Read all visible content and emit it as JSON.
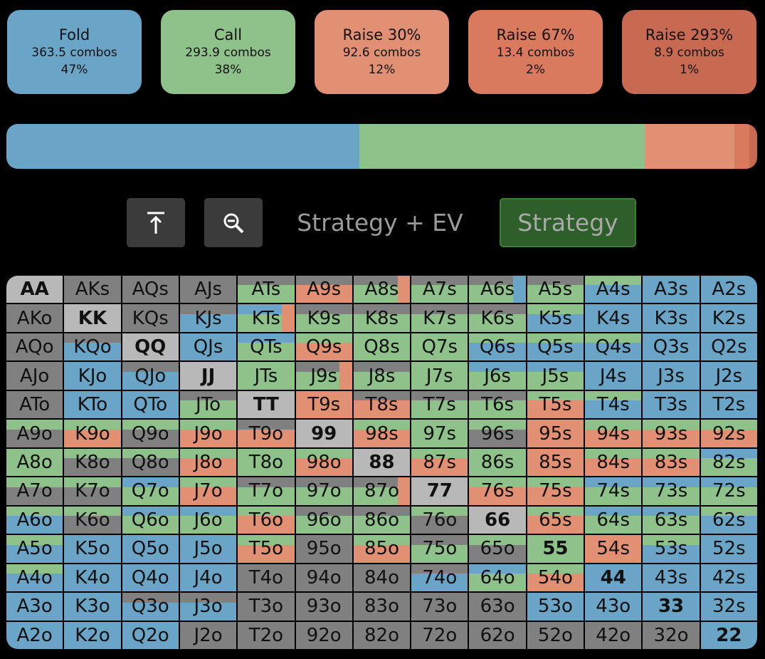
{
  "colors": {
    "fold": "#6aa4c6",
    "call": "#8fc28b",
    "raise30": "#e29074",
    "raise67": "#d97a5e",
    "raise293": "#c86a52",
    "grey": "#808080",
    "pair_light": "#b8b8b8",
    "tab_active_bg": "#2e5e2a"
  },
  "actions": [
    {
      "name": "Fold",
      "combos": "363.5 combos",
      "pct": "47%",
      "color": "#6aa4c6"
    },
    {
      "name": "Call",
      "combos": "293.9 combos",
      "pct": "38%",
      "color": "#8fc28b"
    },
    {
      "name": "Raise 30%",
      "combos": "92.6 combos",
      "pct": "12%",
      "color": "#e29074"
    },
    {
      "name": "Raise 67%",
      "combos": "13.4 combos",
      "pct": "2%",
      "color": "#d97a5e"
    },
    {
      "name": "Raise 293%",
      "combos": "8.9 combos",
      "pct": "1%",
      "color": "#c86a52"
    }
  ],
  "frequency_bar": [
    {
      "action": "Fold",
      "share": 0.47
    },
    {
      "action": "Call",
      "share": 0.38
    },
    {
      "action": "Raise 30%",
      "share": 0.12
    },
    {
      "action": "Raise 67%",
      "share": 0.02
    },
    {
      "action": "Raise 293%",
      "share": 0.01
    }
  ],
  "toolbar": {
    "upload_icon": "arrow-up-to-line-icon",
    "zoom_icon": "magnifier-minus-icon",
    "tab_strategy_ev": "Strategy + EV",
    "tab_strategy": "Strategy",
    "active_tab": "Strategy"
  },
  "hand_grid": [
    [
      "AA",
      "AKs",
      "AQs",
      "AJs",
      "ATs",
      "A9s",
      "A8s",
      "A7s",
      "A6s",
      "A5s",
      "A4s",
      "A3s",
      "A2s"
    ],
    [
      "AKo",
      "KK",
      "KQs",
      "KJs",
      "KTs",
      "K9s",
      "K8s",
      "K7s",
      "K6s",
      "K5s",
      "K4s",
      "K3s",
      "K2s"
    ],
    [
      "AQo",
      "KQo",
      "QQ",
      "QJs",
      "QTs",
      "Q9s",
      "Q8s",
      "Q7s",
      "Q6s",
      "Q5s",
      "Q4s",
      "Q3s",
      "Q2s"
    ],
    [
      "AJo",
      "KJo",
      "QJo",
      "JJ",
      "JTs",
      "J9s",
      "J8s",
      "J7s",
      "J6s",
      "J5s",
      "J4s",
      "J3s",
      "J2s"
    ],
    [
      "ATo",
      "KTo",
      "QTo",
      "JTo",
      "TT",
      "T9s",
      "T8s",
      "T7s",
      "T6s",
      "T5s",
      "T4s",
      "T3s",
      "T2s"
    ],
    [
      "A9o",
      "K9o",
      "Q9o",
      "J9o",
      "T9o",
      "99",
      "98s",
      "97s",
      "96s",
      "95s",
      "94s",
      "93s",
      "92s"
    ],
    [
      "A8o",
      "K8o",
      "Q8o",
      "J8o",
      "T8o",
      "98o",
      "88",
      "87s",
      "86s",
      "85s",
      "84s",
      "83s",
      "82s"
    ],
    [
      "A7o",
      "K7o",
      "Q7o",
      "J7o",
      "T7o",
      "97o",
      "87o",
      "77",
      "76s",
      "75s",
      "74s",
      "73s",
      "72s"
    ],
    [
      "A6o",
      "K6o",
      "Q6o",
      "J6o",
      "T6o",
      "96o",
      "86o",
      "76o",
      "66",
      "65s",
      "64s",
      "63s",
      "62s"
    ],
    [
      "A5o",
      "K5o",
      "Q5o",
      "J5o",
      "T5o",
      "95o",
      "85o",
      "75o",
      "65o",
      "55",
      "54s",
      "53s",
      "52s"
    ],
    [
      "A4o",
      "K4o",
      "Q4o",
      "J4o",
      "T4o",
      "94o",
      "84o",
      "74o",
      "64o",
      "54o",
      "44",
      "43s",
      "42s"
    ],
    [
      "A3o",
      "K3o",
      "Q3o",
      "J3o",
      "T3o",
      "93o",
      "83o",
      "73o",
      "63o",
      "53o",
      "43o",
      "33",
      "32s"
    ],
    [
      "A2o",
      "K2o",
      "Q2o",
      "J2o",
      "T2o",
      "92o",
      "82o",
      "72o",
      "62o",
      "52o",
      "42o",
      "32o",
      "22"
    ]
  ],
  "hand_colors": [
    [
      "X",
      "G",
      "G",
      "G",
      "GC",
      "GR",
      "GCR",
      "GC",
      "GCF",
      "GC",
      "CF",
      "F",
      "F"
    ],
    [
      "G",
      "X",
      "G",
      "GF",
      "FCR",
      "GC",
      "GC",
      "GC",
      "GC",
      "CF",
      "F",
      "F",
      "F"
    ],
    [
      "G",
      "GF",
      "X",
      "F",
      "FC",
      "CR",
      "C",
      "C",
      "CF",
      "CF",
      "CF",
      "F",
      "F"
    ],
    [
      "G",
      "F",
      "GF",
      "X",
      "C",
      "GCR",
      "GC",
      "C",
      "FC",
      "FC",
      "F",
      "F",
      "F"
    ],
    [
      "G",
      "F",
      "F",
      "GC",
      "X",
      "R",
      "GR",
      "GC",
      "GC",
      "CR",
      "CF",
      "F",
      "F"
    ],
    [
      "CG",
      "CR",
      "CG",
      "CR",
      "GR",
      "X",
      "CR",
      "C",
      "CG",
      "R",
      "CR",
      "CR",
      "CR"
    ],
    [
      "C",
      "CG",
      "CG",
      "CR",
      "C",
      "CR",
      "X",
      "CR",
      "C",
      "R",
      "CR",
      "CR",
      "FC"
    ],
    [
      "CG",
      "CG",
      "FC",
      "CR",
      "GC",
      "GC",
      "GCR",
      "X",
      "CR",
      "CR",
      "FC",
      "FC",
      "FC"
    ],
    [
      "CF",
      "CG",
      "FC",
      "FC",
      "CR",
      "GC",
      "GC",
      "CG",
      "X",
      "CR",
      "FC",
      "FC",
      "CF"
    ],
    [
      "CF",
      "F",
      "F",
      "F",
      "CR",
      "G",
      "CR",
      "GC",
      "CG",
      "C",
      "R",
      "CF",
      "F"
    ],
    [
      "CF",
      "F",
      "F",
      "F",
      "G",
      "G",
      "G",
      "GF",
      "FC",
      "CR",
      "F",
      "F",
      "F"
    ],
    [
      "F",
      "F",
      "GF",
      "GF",
      "G",
      "G",
      "G",
      "G",
      "G",
      "F",
      "F",
      "F",
      "F"
    ],
    [
      "F",
      "F",
      "F",
      "G",
      "G",
      "G",
      "G",
      "G",
      "G",
      "G",
      "G",
      "G",
      "F"
    ]
  ]
}
